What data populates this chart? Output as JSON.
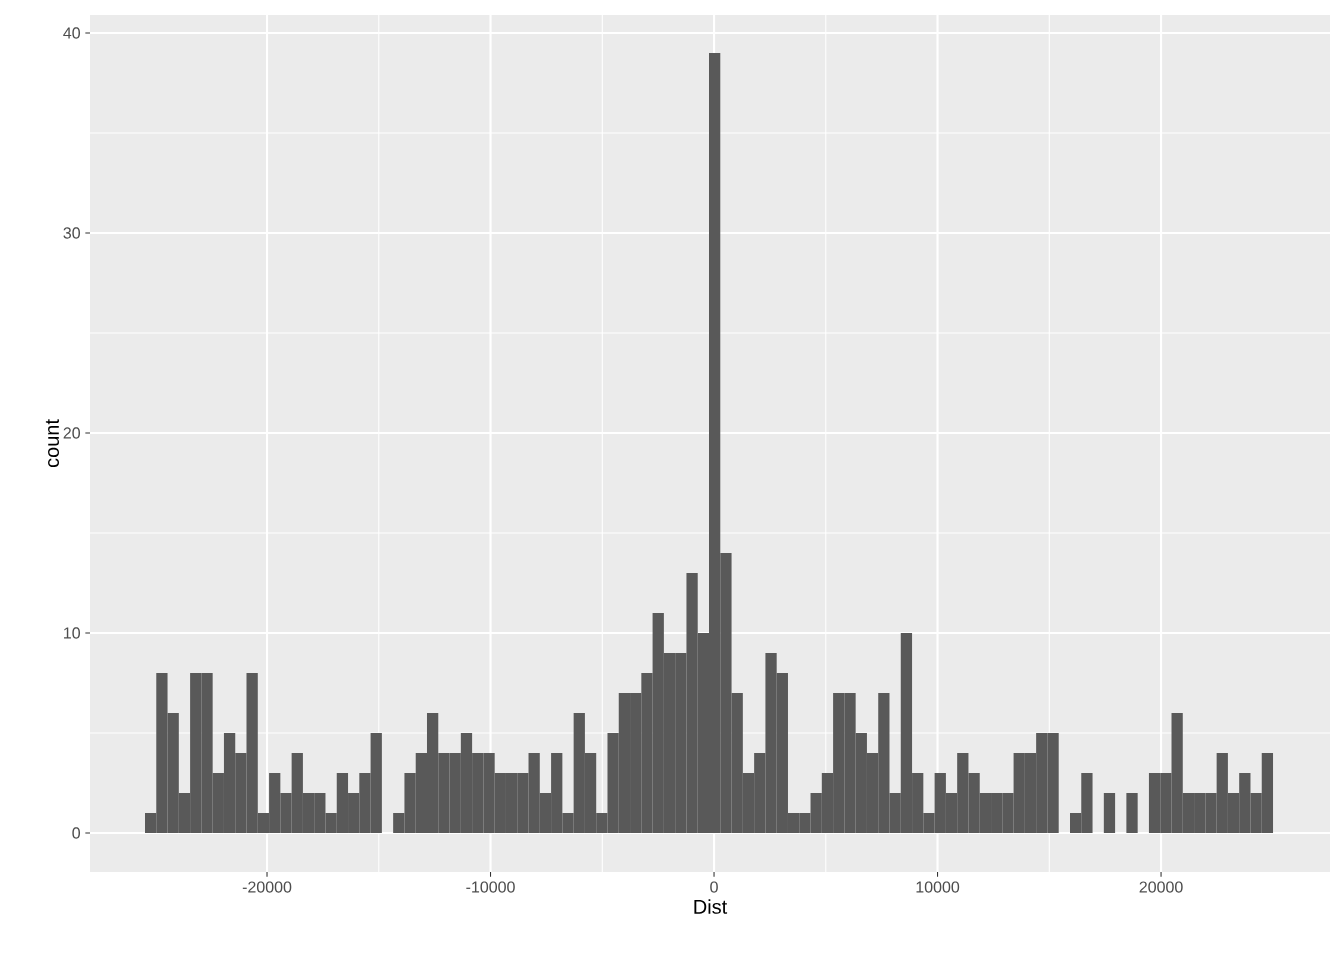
{
  "chart_data": {
    "type": "histogram",
    "xlabel": "Dist",
    "ylabel": "count",
    "color": "#595959",
    "bins": [
      -25460,
      -24955,
      -24451,
      -23946,
      -23441,
      -22937,
      -22432,
      -21927,
      -21422,
      -20918,
      -20413,
      -19908,
      -19404,
      -18899,
      -18394,
      -17890,
      -17385,
      -16880,
      -16375,
      -15871,
      -15366,
      -14861,
      -14357,
      -13852,
      -13347,
      -12843,
      -12338,
      -11833,
      -11328,
      -10824,
      -10319,
      -9814,
      -9310,
      -8805,
      -8300,
      -7796,
      -7291,
      -6786,
      -6281,
      -5777,
      -5272,
      -4767,
      -4263,
      -3758,
      -3253,
      -2749,
      -2244,
      -1739,
      -1234,
      -730,
      -225,
      280,
      784,
      1289,
      1794,
      2299,
      2803,
      3308,
      3813,
      4317,
      4822,
      5327,
      5831,
      6336,
      6841,
      7346,
      7850,
      8355,
      8860,
      9364,
      9869,
      10374,
      10878,
      11383,
      11888,
      12393,
      12897,
      13402,
      13907,
      14411,
      14916,
      15421,
      15925,
      16430,
      16935,
      17440,
      17944,
      18449,
      18954,
      19458,
      19963,
      20468,
      20972,
      21477,
      21982,
      22487,
      22991,
      23496,
      24001,
      24505,
      25010
    ],
    "values": [
      1,
      8,
      6,
      2,
      8,
      8,
      3,
      5,
      4,
      8,
      1,
      3,
      2,
      4,
      2,
      2,
      1,
      3,
      2,
      3,
      5,
      0,
      1,
      3,
      4,
      6,
      4,
      4,
      5,
      4,
      4,
      3,
      3,
      3,
      4,
      2,
      4,
      1,
      6,
      4,
      1,
      5,
      7,
      7,
      8,
      11,
      9,
      9,
      13,
      10,
      39,
      14,
      7,
      3,
      4,
      9,
      8,
      1,
      1,
      2,
      3,
      7,
      7,
      5,
      4,
      7,
      2,
      10,
      3,
      1,
      3,
      2,
      4,
      3,
      2,
      2,
      2,
      4,
      4,
      5,
      5,
      0,
      1,
      3,
      0,
      2,
      0,
      2,
      0,
      3,
      3,
      6,
      2,
      2,
      2,
      4,
      2,
      3,
      2,
      4
    ],
    "xlim": [
      -27920,
      27560
    ],
    "ylim": [
      -1.95,
      40.9
    ],
    "xticks": [
      -20000,
      -10000,
      0,
      10000,
      20000
    ],
    "yticks": [
      0,
      10,
      20,
      30,
      40
    ],
    "grid": true
  }
}
